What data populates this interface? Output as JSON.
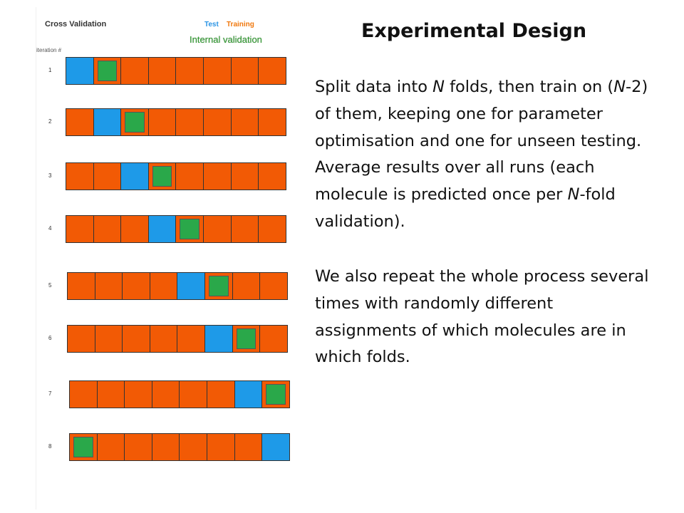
{
  "diagram": {
    "title": "Cross Validation",
    "legend": {
      "test": "Test",
      "training": "Training",
      "internal": "Internal validation"
    },
    "iteration_heading": "iteration #",
    "colors": {
      "test": "#1e9ae8",
      "training": "#f25a05",
      "internal": "#2aa84a",
      "legend_test": "#2a94e4",
      "legend_training": "#f0780e",
      "legend_internal": "#2e9c2e"
    },
    "iterations": [
      {
        "label": "1",
        "folds": [
          "test",
          "training",
          "training",
          "training",
          "training",
          "training",
          "training",
          "training"
        ],
        "internal_fold": 2
      },
      {
        "label": "2",
        "folds": [
          "training",
          "test",
          "training",
          "training",
          "training",
          "training",
          "training",
          "training"
        ],
        "internal_fold": 3
      },
      {
        "label": "3",
        "folds": [
          "training",
          "training",
          "test",
          "training",
          "training",
          "training",
          "training",
          "training"
        ],
        "internal_fold": 4
      },
      {
        "label": "4",
        "folds": [
          "training",
          "training",
          "training",
          "test",
          "training",
          "training",
          "training",
          "training"
        ],
        "internal_fold": 5
      },
      {
        "label": "5",
        "folds": [
          "training",
          "training",
          "training",
          "training",
          "test",
          "training",
          "training",
          "training"
        ],
        "internal_fold": 6
      },
      {
        "label": "6",
        "folds": [
          "training",
          "training",
          "training",
          "training",
          "training",
          "test",
          "training",
          "training"
        ],
        "internal_fold": 7
      },
      {
        "label": "7",
        "folds": [
          "training",
          "training",
          "training",
          "training",
          "training",
          "training",
          "test",
          "training"
        ],
        "internal_fold": 8
      },
      {
        "label": "8",
        "folds": [
          "training",
          "training",
          "training",
          "training",
          "training",
          "training",
          "training",
          "test"
        ],
        "internal_fold": 1
      }
    ]
  },
  "slide": {
    "title": "Experimental Design",
    "para1": {
      "t1": "Split data into ",
      "n1": "N",
      "t2": " folds, then train on (",
      "n2": "N",
      "t3": "-2) of them, keeping one for parameter optimisation and one for unseen testing. Average results over all runs (each molecule is predicted once per ",
      "n3": "N",
      "t4": "-fold validation)."
    },
    "para2": "We also repeat the whole process several times with randomly different assignments of which molecules are in which folds."
  }
}
